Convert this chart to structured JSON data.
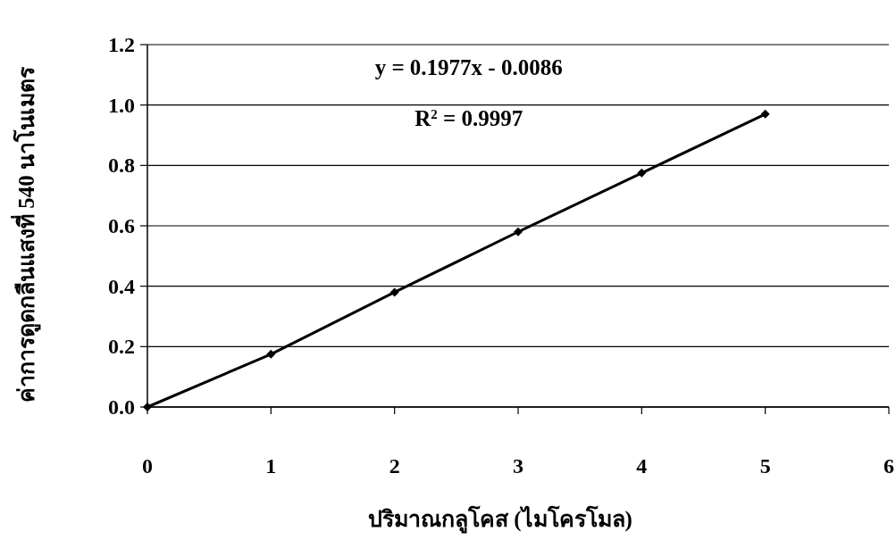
{
  "chart_data": {
    "type": "line",
    "xlabel": "ปริมาณกลูโคส (ไมโครโมล)",
    "ylabel": "ค่าการดูดกลืนแสงที่ 540 นาโนเมตร",
    "x": [
      0,
      1,
      2,
      3,
      4,
      5
    ],
    "series": [
      {
        "color": "#000000",
        "values": [
          0,
          0.175,
          0.38,
          0.58,
          0.775,
          0.97
        ]
      }
    ],
    "xlim": [
      0,
      6
    ],
    "ylim": [
      0,
      1.2
    ],
    "xticks": [
      0,
      1,
      2,
      3,
      4,
      5,
      6
    ],
    "yticks": [
      {
        "value": 0,
        "label": "0.0"
      },
      0.2,
      0.4,
      0.6,
      0.8,
      {
        "value": 1,
        "label": "1.0"
      },
      1.2
    ],
    "annotations": [
      "y = 0.1977x - 0.0086",
      "R$^{2}$ = 0.9997"
    ],
    "grid": "y",
    "marker": "diamond",
    "line_style": "solid"
  }
}
